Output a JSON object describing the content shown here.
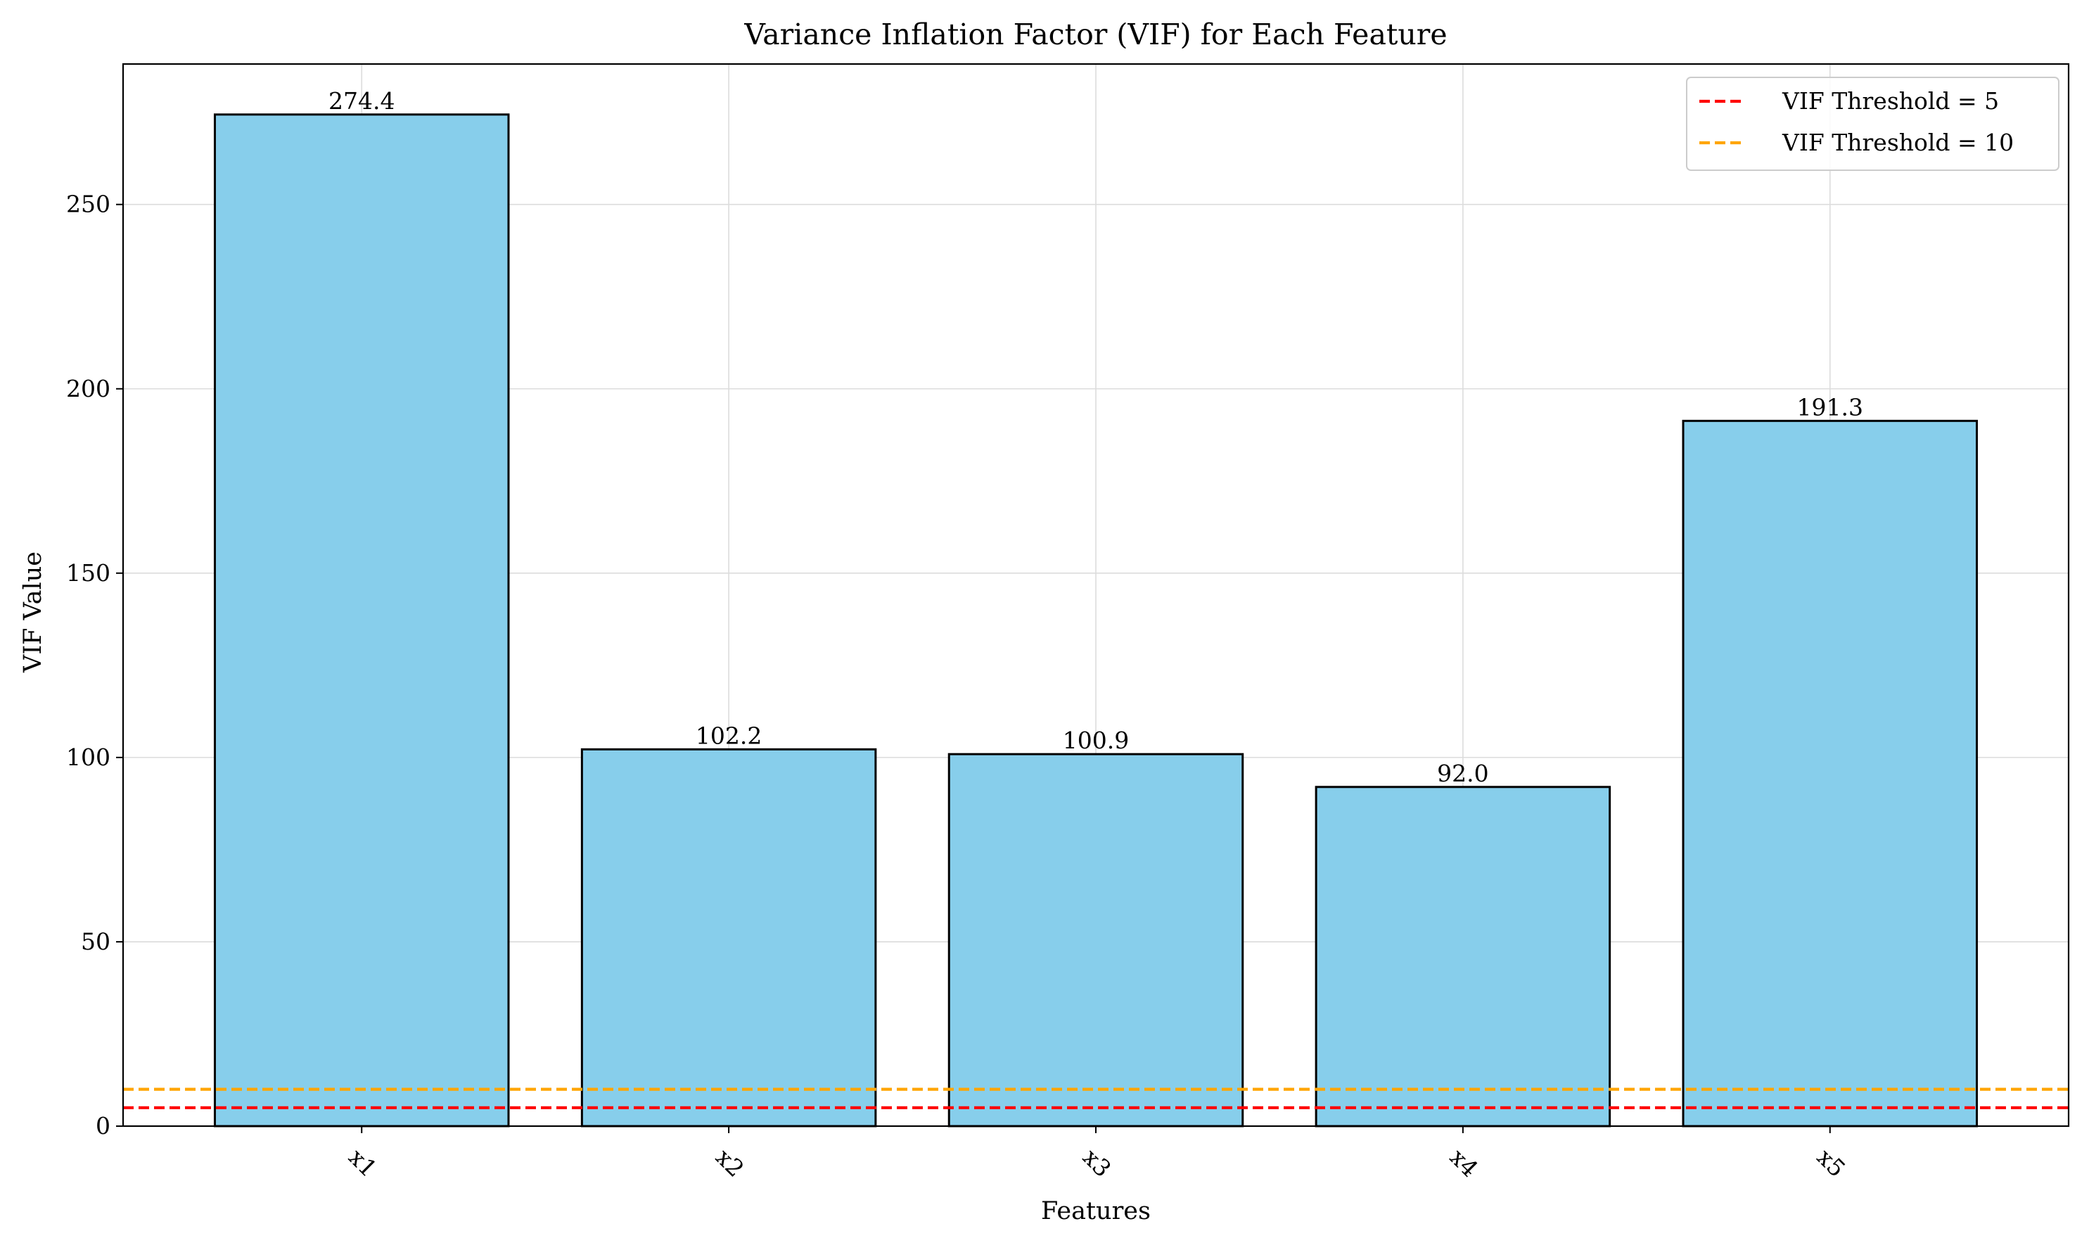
{
  "chart_data": {
    "type": "bar",
    "title": "Variance Inflation Factor (VIF) for Each Feature",
    "xlabel": "Features",
    "ylabel": "VIF Value",
    "categories": [
      "x1",
      "x2",
      "x3",
      "x4",
      "x5"
    ],
    "values": [
      274.4,
      102.2,
      100.9,
      92.0,
      191.3
    ],
    "data_labels": [
      "274.4",
      "102.2",
      "100.9",
      "92.0",
      "191.3"
    ],
    "ylim": [
      0,
      288.1
    ],
    "yticks": [
      0,
      50,
      100,
      150,
      200,
      250
    ],
    "ytick_labels": [
      "0",
      "50",
      "100",
      "150",
      "200",
      "250"
    ],
    "xtick_rotation_deg": 45,
    "grid": true,
    "bar_color": "#87CEEB",
    "bar_edge_color": "#000000",
    "reference_lines": [
      {
        "name": "VIF Threshold = 5",
        "value": 5,
        "color": "#FF0000",
        "style": "dashed"
      },
      {
        "name": "VIF Threshold = 10",
        "value": 10,
        "color": "#FFA500",
        "style": "dashed"
      }
    ],
    "legend_position": "top-right"
  }
}
